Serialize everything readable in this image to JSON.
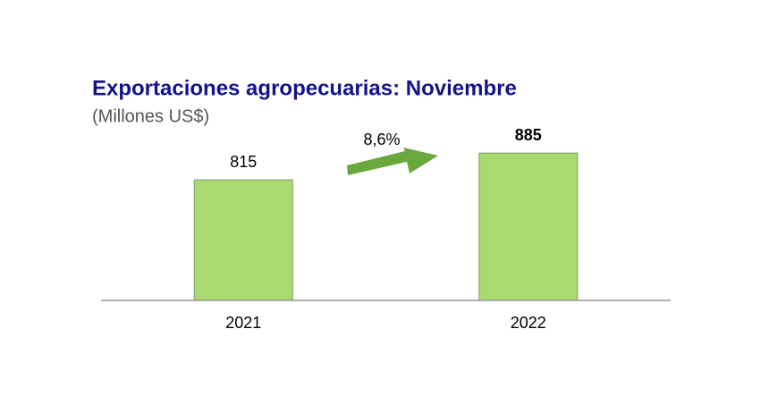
{
  "chart_data": {
    "type": "bar",
    "title": "Exportaciones agropecuarias: Noviembre",
    "subtitle": "(Millones US$)",
    "categories": [
      "2021",
      "2022"
    ],
    "values": [
      815,
      885
    ],
    "color": "#a9d96f",
    "ylim": [
      500,
      1000
    ],
    "annotation": "8,6%"
  }
}
